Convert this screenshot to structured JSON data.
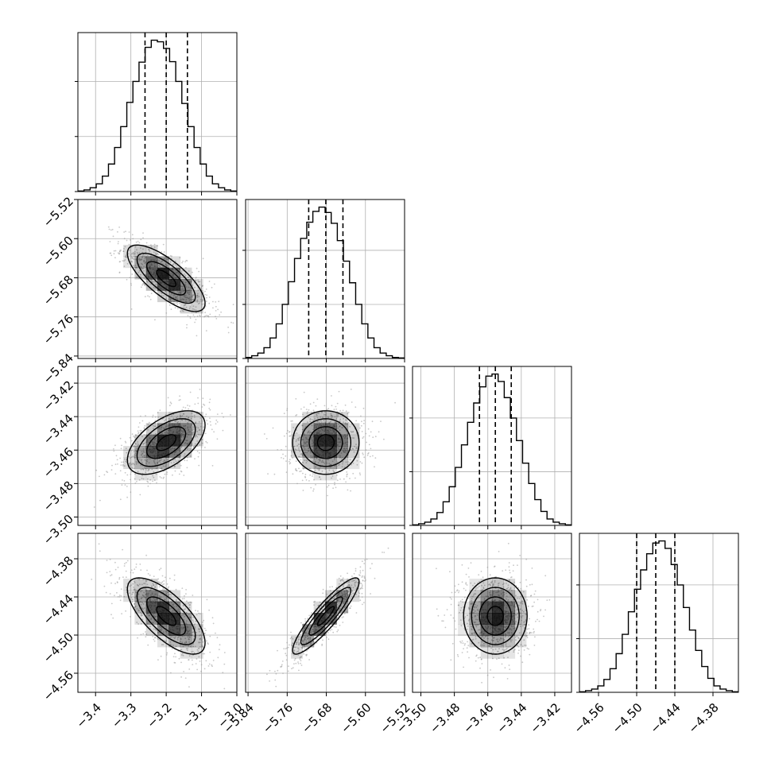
{
  "chart_data": {
    "type": "corner",
    "parameters": [
      {
        "ticks": [
          -3.4,
          -3.3,
          -3.2,
          -3.1,
          -3.0
        ],
        "tick_labels": [
          "−3.4",
          "−3.3",
          "−3.2",
          "−3.1",
          "−3.0"
        ],
        "range": [
          -3.45,
          -3.0
        ],
        "quantiles": [
          -3.26,
          -3.2,
          -3.14
        ],
        "median": -3.2,
        "sigma": 0.055
      },
      {
        "ticks": [
          -5.84,
          -5.76,
          -5.68,
          -5.6,
          -5.52
        ],
        "tick_labels": [
          "−5.84",
          "−5.76",
          "−5.68",
          "−5.60",
          "−5.52"
        ],
        "range": [
          -5.845,
          -5.52
        ],
        "quantiles": [
          -5.716,
          -5.681,
          -5.646
        ],
        "median": -5.681,
        "sigma": 0.034
      },
      {
        "ticks": [
          -3.5,
          -3.48,
          -3.46,
          -3.44,
          -3.42
        ],
        "tick_labels": [
          "−3.50",
          "−3.48",
          "−3.46",
          "−3.44",
          "−3.42"
        ],
        "range": [
          -3.505,
          -3.41
        ],
        "quantiles": [
          -3.465,
          -3.4555,
          -3.446
        ],
        "median": -3.4555,
        "sigma": 0.0095
      },
      {
        "ticks": [
          -4.56,
          -4.5,
          -4.44,
          -4.38
        ],
        "tick_labels": [
          "−4.56",
          "−4.50",
          "−4.44",
          "−4.38"
        ],
        "range": [
          -4.59,
          -4.34
        ],
        "quantiles": [
          -4.5,
          -4.47,
          -4.44
        ],
        "median": -4.47,
        "sigma": 0.03
      }
    ],
    "histograms": [
      [
        1,
        3,
        7,
        14,
        28,
        50,
        80,
        118,
        162,
        200,
        235,
        262,
        275,
        272,
        260,
        236,
        200,
        160,
        118,
        80,
        50,
        28,
        14,
        7,
        3,
        1
      ],
      [
        2,
        5,
        10,
        20,
        38,
        64,
        100,
        142,
        185,
        222,
        252,
        272,
        280,
        270,
        250,
        218,
        180,
        140,
        100,
        64,
        38,
        20,
        10,
        5,
        2,
        1
      ],
      [
        1,
        3,
        6,
        12,
        24,
        44,
        72,
        108,
        150,
        192,
        228,
        258,
        278,
        282,
        268,
        238,
        200,
        158,
        116,
        78,
        48,
        26,
        12,
        6,
        3,
        1
      ],
      [
        1,
        3,
        6,
        12,
        24,
        44,
        72,
        108,
        150,
        192,
        228,
        258,
        278,
        282,
        268,
        238,
        200,
        158,
        116,
        78,
        48,
        26,
        12,
        6,
        3,
        1
      ]
    ],
    "correlations": {
      "1-0": -0.75,
      "2-0": 0.55,
      "2-1": 0.0,
      "3-0": -0.7,
      "3-1": 0.9,
      "3-2": 0.0
    },
    "contour_levels": [
      0.5,
      1.0,
      1.5,
      2.0
    ],
    "grid": true,
    "colors": {
      "density": "#000000",
      "points": "#9a9a9a",
      "contour": "#000000",
      "quantile_line": "#000000",
      "grid": "#b0b0b0"
    }
  }
}
